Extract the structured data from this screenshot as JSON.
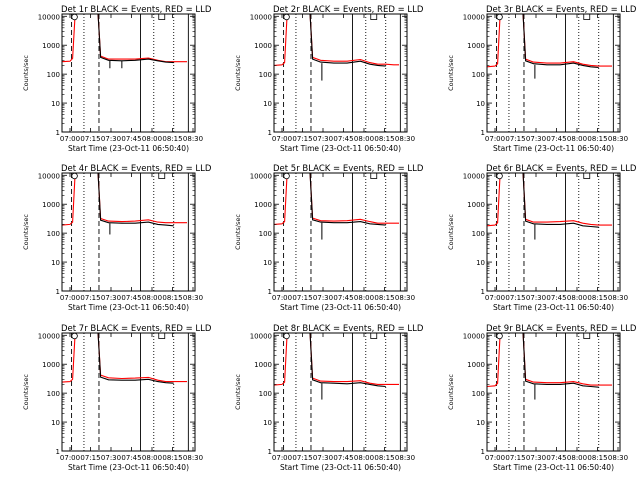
{
  "figure": {
    "xlabel": "Start Time (23-Oct-11 06:50:40)",
    "ylabel": "Counts/sec",
    "x_ticks": [
      "07:00",
      "07:15",
      "07:30",
      "07:45",
      "08:00",
      "08:15",
      "08:30"
    ],
    "y_ticks": [
      "1",
      "10",
      "100",
      "1000",
      "10000"
    ],
    "colors": {
      "events": "#000000",
      "lld": "#ff0000",
      "axes": "#000000"
    }
  },
  "chart_data": [
    {
      "type": "line",
      "title": "Det 1r BLACK = Events, RED = LLD",
      "xlim": [
        0,
        100
      ],
      "ylim": [
        1,
        12000
      ],
      "y_scale": "log",
      "grid": false,
      "vlines": {
        "dashed": [
          7.2,
          27.8
        ],
        "solid": [
          59,
          95
        ],
        "dotted": [
          16.5,
          69,
          84
        ]
      },
      "square_marker_x": 75,
      "series": [
        {
          "color": "red",
          "x": [
            0,
            6,
            8,
            10,
            27,
            29,
            35,
            45,
            55,
            65,
            72,
            78,
            84,
            90,
            94
          ],
          "y": [
            270,
            280,
            350,
            15000,
            15000,
            420,
            330,
            330,
            330,
            360,
            300,
            270,
            270,
            270,
            270
          ]
        },
        {
          "color": "black",
          "x": [
            10,
            27,
            29,
            35,
            45,
            55,
            65,
            72,
            78,
            84
          ],
          "y": [
            15000,
            15000,
            380,
            300,
            290,
            300,
            330,
            290,
            260,
            250
          ],
          "spikes": [
            [
              36,
              160
            ],
            [
              45,
              160
            ]
          ]
        }
      ]
    },
    {
      "type": "line",
      "title": "Det 2r BLACK = Events, RED = LLD",
      "xlim": [
        0,
        100
      ],
      "ylim": [
        1,
        12000
      ],
      "y_scale": "log",
      "grid": false,
      "vlines": {
        "dashed": [
          7.2,
          27.8
        ],
        "solid": [
          59,
          95
        ],
        "dotted": [
          16.5,
          69,
          84
        ]
      },
      "square_marker_x": 75,
      "series": [
        {
          "color": "red",
          "x": [
            0,
            6,
            8,
            10,
            27,
            29,
            35,
            45,
            55,
            65,
            72,
            78,
            84,
            90,
            94
          ],
          "y": [
            200,
            210,
            250,
            15000,
            15000,
            380,
            300,
            280,
            280,
            320,
            250,
            220,
            220,
            210,
            210
          ]
        },
        {
          "color": "black",
          "x": [
            10,
            27,
            29,
            35,
            45,
            55,
            65,
            72,
            78,
            84
          ],
          "y": [
            15000,
            15000,
            330,
            260,
            240,
            240,
            280,
            220,
            200,
            190
          ],
          "spikes": [
            [
              36,
              60
            ]
          ]
        }
      ]
    },
    {
      "type": "line",
      "title": "Det 3r BLACK = Events, RED = LLD",
      "xlim": [
        0,
        100
      ],
      "ylim": [
        1,
        12000
      ],
      "y_scale": "log",
      "grid": false,
      "vlines": {
        "dashed": [
          7.2,
          27.8
        ],
        "solid": [
          59,
          95
        ],
        "dotted": [
          16.5,
          69,
          84
        ]
      },
      "square_marker_x": 75,
      "series": [
        {
          "color": "red",
          "x": [
            0,
            6,
            8,
            10,
            27,
            29,
            35,
            45,
            55,
            65,
            72,
            78,
            84,
            90,
            94
          ],
          "y": [
            180,
            190,
            230,
            15000,
            15000,
            330,
            260,
            240,
            240,
            270,
            220,
            200,
            190,
            190,
            190
          ]
        },
        {
          "color": "black",
          "x": [
            10,
            27,
            29,
            35,
            45,
            55,
            65,
            72,
            78,
            84
          ],
          "y": [
            15000,
            15000,
            290,
            230,
            210,
            210,
            240,
            200,
            180,
            170
          ],
          "spikes": [
            [
              36,
              70
            ]
          ]
        }
      ]
    },
    {
      "type": "line",
      "title": "Det 4r BLACK = Events, RED = LLD",
      "xlim": [
        0,
        100
      ],
      "ylim": [
        1,
        12000
      ],
      "y_scale": "log",
      "grid": false,
      "vlines": {
        "dashed": [
          7.2,
          27.8
        ],
        "solid": [
          59,
          95
        ],
        "dotted": [
          16.5,
          69,
          84
        ]
      },
      "square_marker_x": 75,
      "series": [
        {
          "color": "red",
          "x": [
            0,
            6,
            8,
            10,
            27,
            29,
            35,
            45,
            55,
            65,
            72,
            78,
            84,
            90,
            94
          ],
          "y": [
            190,
            200,
            240,
            15000,
            15000,
            320,
            260,
            250,
            260,
            290,
            240,
            230,
            230,
            230,
            230
          ]
        },
        {
          "color": "black",
          "x": [
            10,
            27,
            29,
            35,
            45,
            55,
            65,
            72,
            78,
            84
          ],
          "y": [
            15000,
            15000,
            280,
            230,
            220,
            220,
            240,
            200,
            190,
            180
          ],
          "spikes": [
            [
              36,
              90
            ]
          ]
        }
      ]
    },
    {
      "type": "line",
      "title": "Det 5r BLACK = Events, RED = LLD",
      "xlim": [
        0,
        100
      ],
      "ylim": [
        1,
        12000
      ],
      "y_scale": "log",
      "grid": false,
      "vlines": {
        "dashed": [
          7.2,
          27.8
        ],
        "solid": [
          59,
          95
        ],
        "dotted": [
          16.5,
          69,
          84
        ]
      },
      "square_marker_x": 75,
      "series": [
        {
          "color": "red",
          "x": [
            0,
            6,
            8,
            10,
            27,
            29,
            35,
            45,
            55,
            65,
            72,
            78,
            84,
            90,
            94
          ],
          "y": [
            200,
            210,
            250,
            15000,
            15000,
            330,
            270,
            260,
            270,
            300,
            250,
            220,
            220,
            220,
            220
          ]
        },
        {
          "color": "black",
          "x": [
            10,
            27,
            29,
            35,
            45,
            55,
            65,
            72,
            78,
            84
          ],
          "y": [
            15000,
            15000,
            290,
            240,
            230,
            230,
            250,
            210,
            200,
            190
          ],
          "spikes": [
            [
              36,
              60
            ]
          ]
        }
      ]
    },
    {
      "type": "line",
      "title": "Det 6r BLACK = Events, RED = LLD",
      "xlim": [
        0,
        100
      ],
      "ylim": [
        1,
        12000
      ],
      "y_scale": "log",
      "grid": false,
      "vlines": {
        "dashed": [
          7.2,
          27.8
        ],
        "solid": [
          59,
          95
        ],
        "dotted": [
          16.5,
          69,
          84
        ]
      },
      "square_marker_x": 75,
      "series": [
        {
          "color": "red",
          "x": [
            0,
            6,
            8,
            10,
            27,
            29,
            35,
            45,
            55,
            65,
            72,
            78,
            84,
            90,
            94
          ],
          "y": [
            180,
            190,
            230,
            15000,
            15000,
            300,
            240,
            240,
            250,
            270,
            220,
            200,
            190,
            190,
            190
          ]
        },
        {
          "color": "black",
          "x": [
            10,
            27,
            29,
            35,
            45,
            55,
            65,
            72,
            78,
            84
          ],
          "y": [
            15000,
            15000,
            260,
            210,
            200,
            200,
            220,
            180,
            170,
            160
          ],
          "spikes": [
            [
              36,
              60
            ]
          ]
        }
      ]
    },
    {
      "type": "line",
      "title": "Det 7r BLACK = Events, RED = LLD",
      "xlim": [
        0,
        100
      ],
      "ylim": [
        1,
        12000
      ],
      "y_scale": "log",
      "grid": false,
      "vlines": {
        "dashed": [
          7.2,
          27.8
        ],
        "solid": [
          59,
          95
        ],
        "dotted": [
          16.5,
          69,
          84
        ]
      },
      "square_marker_x": 75,
      "series": [
        {
          "color": "red",
          "x": [
            0,
            6,
            8,
            10,
            27,
            29,
            35,
            45,
            55,
            65,
            72,
            78,
            84,
            90,
            94
          ],
          "y": [
            240,
            250,
            300,
            15000,
            15000,
            420,
            340,
            320,
            330,
            350,
            280,
            250,
            250,
            250,
            250
          ]
        },
        {
          "color": "black",
          "x": [
            10,
            27,
            29,
            35,
            45,
            55,
            65,
            72,
            78,
            84
          ],
          "y": [
            15000,
            15000,
            360,
            290,
            280,
            280,
            300,
            250,
            230,
            220
          ],
          "spikes": []
        }
      ]
    },
    {
      "type": "line",
      "title": "Det 8r BLACK = Events, RED = LLD",
      "xlim": [
        0,
        100
      ],
      "ylim": [
        1,
        12000
      ],
      "y_scale": "log",
      "grid": false,
      "vlines": {
        "dashed": [
          7.2,
          27.8
        ],
        "solid": [
          59,
          95
        ],
        "dotted": [
          16.5,
          69,
          84
        ]
      },
      "square_marker_x": 75,
      "series": [
        {
          "color": "red",
          "x": [
            0,
            6,
            8,
            10,
            27,
            29,
            35,
            45,
            55,
            65,
            72,
            78,
            84,
            90,
            94
          ],
          "y": [
            190,
            200,
            240,
            15000,
            15000,
            330,
            260,
            250,
            250,
            270,
            220,
            200,
            200,
            200,
            200
          ]
        },
        {
          "color": "black",
          "x": [
            10,
            27,
            29,
            35,
            45,
            55,
            65,
            72,
            78,
            84
          ],
          "y": [
            15000,
            15000,
            290,
            230,
            220,
            210,
            230,
            200,
            180,
            170
          ],
          "spikes": [
            [
              36,
              60
            ]
          ]
        }
      ]
    },
    {
      "type": "line",
      "title": "Det 9r BLACK = Events, RED = LLD",
      "xlim": [
        0,
        100
      ],
      "ylim": [
        1,
        12000
      ],
      "y_scale": "log",
      "grid": false,
      "vlines": {
        "dashed": [
          7.2,
          27.8
        ],
        "solid": [
          59,
          95
        ],
        "dotted": [
          16.5,
          69,
          84
        ]
      },
      "square_marker_x": 75,
      "series": [
        {
          "color": "red",
          "x": [
            0,
            6,
            8,
            10,
            27,
            29,
            35,
            45,
            55,
            65,
            72,
            78,
            84,
            90,
            94
          ],
          "y": [
            170,
            180,
            220,
            15000,
            15000,
            300,
            240,
            230,
            230,
            250,
            210,
            190,
            190,
            190,
            190
          ]
        },
        {
          "color": "black",
          "x": [
            10,
            27,
            29,
            35,
            45,
            55,
            65,
            72,
            78,
            84
          ],
          "y": [
            15000,
            15000,
            260,
            210,
            200,
            200,
            220,
            180,
            170,
            160
          ],
          "spikes": [
            [
              36,
              60
            ]
          ]
        }
      ]
    }
  ]
}
